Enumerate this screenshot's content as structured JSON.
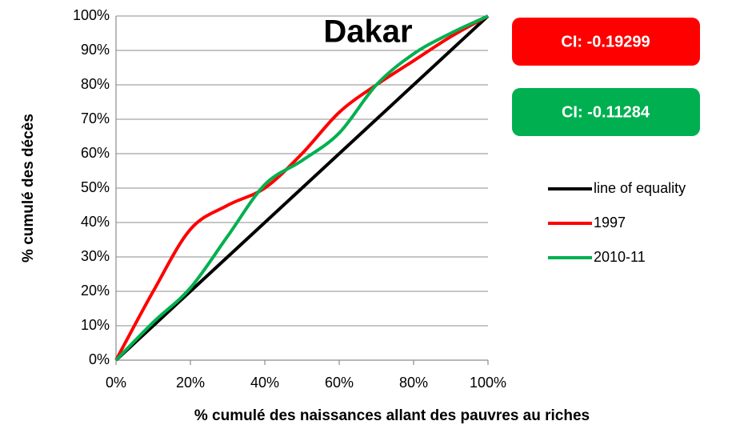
{
  "chart_data": {
    "type": "line",
    "title": "Dakar",
    "xlabel": "% cumulé des naissances allant des pauvres au riches",
    "ylabel": "% cumulé des décès",
    "annotations": [
      {
        "text": "CI: -0.19299",
        "color": "#ff0000"
      },
      {
        "text": "CI: -0.11284",
        "color": "#00b050"
      }
    ],
    "x": [
      0,
      10,
      20,
      30,
      40,
      50,
      60,
      70,
      80,
      90,
      100
    ],
    "series": [
      {
        "name": "line of equality",
        "color": "#000000",
        "values": [
          0,
          10,
          20,
          30,
          40,
          50,
          60,
          70,
          80,
          90,
          100
        ]
      },
      {
        "name": "1997",
        "color": "#ff0000",
        "values": [
          0,
          20,
          38,
          45,
          50,
          60,
          72,
          80,
          87,
          94,
          100
        ]
      },
      {
        "name": "2010-11",
        "color": "#00b050",
        "values": [
          0,
          11,
          21,
          36,
          51,
          58,
          66,
          80,
          89,
          95,
          100
        ]
      }
    ],
    "xlim": [
      0,
      100
    ],
    "xticks": [
      {
        "value": 0,
        "label": "0%"
      },
      {
        "value": 20,
        "label": "20%"
      },
      {
        "value": 40,
        "label": "40%"
      },
      {
        "value": 60,
        "label": "60%"
      },
      {
        "value": 80,
        "label": "80%"
      },
      {
        "value": 100,
        "label": "100%"
      }
    ],
    "ylim": [
      0,
      100
    ],
    "yticks": [
      {
        "value": 0,
        "label": "0%"
      },
      {
        "value": 10,
        "label": "10%"
      },
      {
        "value": 20,
        "label": "20%"
      },
      {
        "value": 30,
        "label": "30%"
      },
      {
        "value": 40,
        "label": "40%"
      },
      {
        "value": 50,
        "label": "50%"
      },
      {
        "value": 60,
        "label": "60%"
      },
      {
        "value": 70,
        "label": "70%"
      },
      {
        "value": 80,
        "label": "80%"
      },
      {
        "value": 90,
        "label": "90%"
      },
      {
        "value": 100,
        "label": "100%"
      }
    ],
    "grid": true,
    "legend": "right"
  }
}
